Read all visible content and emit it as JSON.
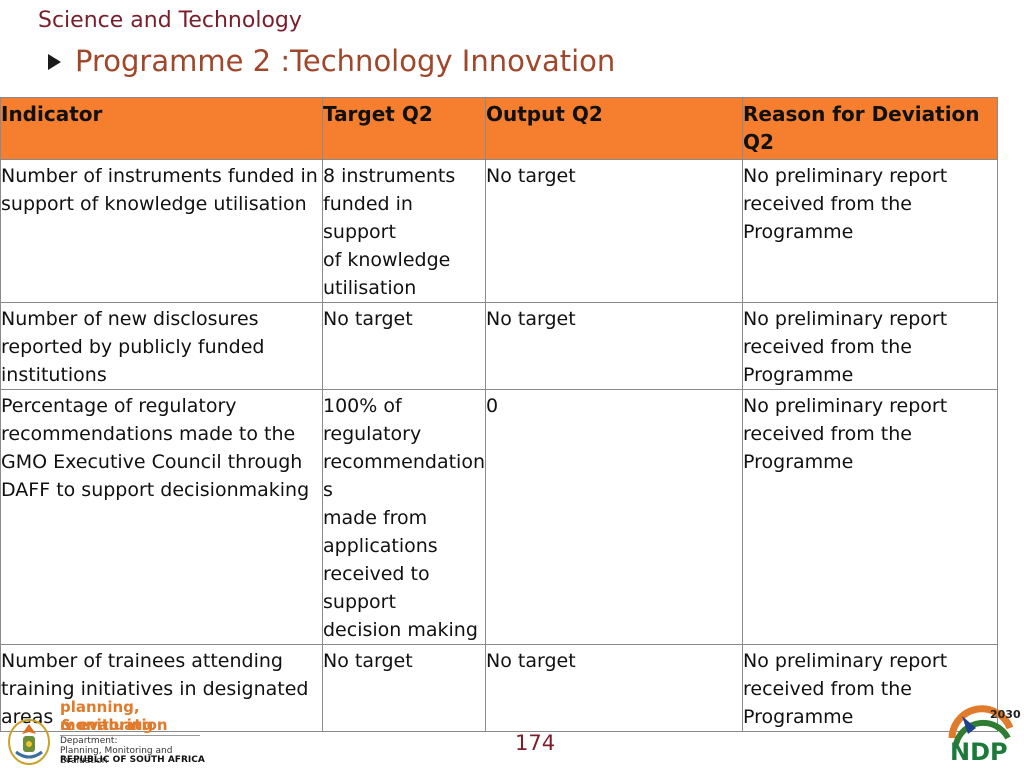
{
  "header": {
    "section": "Science and Technology",
    "programme": "Programme 2 :Technology Innovation"
  },
  "table": {
    "columns": [
      "Indicator",
      "Target Q2",
      "Output Q2",
      "Reason for Deviation Q2"
    ],
    "rows": [
      {
        "indicator": "Number of instruments funded in support of knowledge utilisation",
        "target": "8 instruments\nfunded in\nsupport\nof knowledge\nutilisation",
        "output": "No target",
        "reason": "No preliminary report received from the Programme"
      },
      {
        "indicator": "Number of new disclosures reported by publicly funded institutions",
        "target": "No target",
        "output": "No target",
        "reason": "No preliminary report received from the Programme"
      },
      {
        "indicator": "Percentage of regulatory recommendations made to the GMO Executive Council through DAFF to support decisionmaking",
        "target": "100% of\nregulatory\nrecommendation\ns\nmade from\napplications\nreceived to\nsupport\ndecision making",
        "output": "0",
        "reason": "No preliminary report received from the Programme"
      },
      {
        "indicator": "Number of trainees attending training initiatives in designated areas",
        "target": "No target",
        "output": "No target",
        "reason": "No preliminary report received from the Programme"
      }
    ]
  },
  "footer": {
    "logo_line1": "planning, monitoring",
    "logo_line2": "& evaluation",
    "dept_line1": "Department:",
    "dept_line2": "Planning, Monitoring and Evaluation",
    "dept_line3": "REPUBLIC OF SOUTH AFRICA",
    "page_number": "174",
    "ndp_text": "NDP",
    "ndp_year": "2030"
  },
  "colors": {
    "header_fill": "#f57f2e",
    "section_title": "#7a1e2c",
    "programme_title": "#a0472a"
  }
}
